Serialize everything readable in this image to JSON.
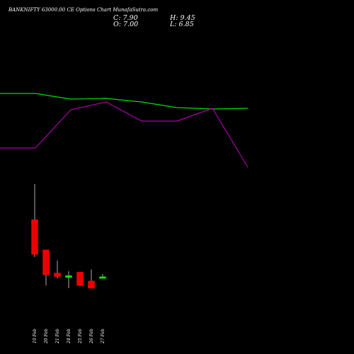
{
  "header": {
    "title": "BANKNIFTY 63000.00 CE Options Chart MunafaSutra.com",
    "close": "C: 7.90",
    "open": "O: 7.00",
    "high": "H: 9.45",
    "low": "L: 6.85"
  },
  "chart_data": {
    "type": "candlestick",
    "title": "BANKNIFTY 63000.00 CE Options Chart MunafaSutra.com",
    "categories": [
      "19 Feb",
      "20 Feb",
      "21 Feb",
      "24 Feb",
      "25 Feb",
      "26 Feb",
      "27 Feb"
    ],
    "candles": [
      {
        "date": "19 Feb",
        "open": 40.0,
        "high": 60.0,
        "low": 19.0,
        "close": 20.5
      },
      {
        "date": "20 Feb",
        "open": 23.0,
        "high": 23.0,
        "low": 3.0,
        "close": 9.0
      },
      {
        "date": "21 Feb",
        "open": 10.0,
        "high": 17.0,
        "low": 7.0,
        "close": 8.0
      },
      {
        "date": "24 Feb",
        "open": 7.5,
        "high": 11.0,
        "low": 1.5,
        "close": 8.5
      },
      {
        "date": "25 Feb",
        "open": 10.5,
        "high": 10.5,
        "low": 2.5,
        "close": 3.0
      },
      {
        "date": "26 Feb",
        "open": 5.5,
        "high": 12.0,
        "low": 1.5,
        "close": 1.5
      },
      {
        "date": "27 Feb",
        "open": 7.0,
        "high": 9.45,
        "low": 6.85,
        "close": 7.9
      }
    ],
    "overlay_lines": [
      {
        "color": "#00dd00",
        "x": [
          0,
          1,
          2,
          3,
          4,
          5,
          6,
          7
        ],
        "y": [
          0.62,
          0.54,
          0.55,
          0.48,
          0.4,
          0.36,
          0.36,
          0.36
        ]
      },
      {
        "color": "#aa00aa",
        "x": [
          0,
          1,
          2,
          3,
          4,
          5,
          6,
          7
        ],
        "y": [
          0.0,
          0.0,
          0.55,
          0.65,
          0.38,
          0.38,
          0.55,
          0.0
        ]
      }
    ],
    "colors": {
      "bull": "#00ee00",
      "bear": "#ee0000",
      "wick": "#aaaaaa",
      "background": "#000000"
    },
    "grid": false
  }
}
